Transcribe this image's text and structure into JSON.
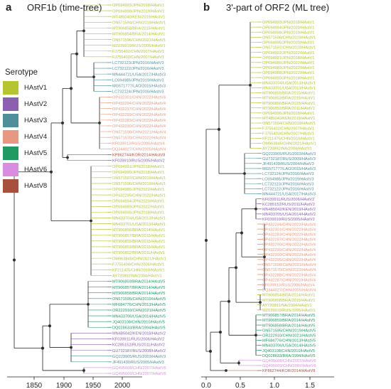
{
  "panels": [
    {
      "letter": "a",
      "title": "ORF1b (time-tree)",
      "axis_ticks": [
        "1850",
        "1900",
        "1950",
        "2000"
      ]
    },
    {
      "letter": "b",
      "title": "3'-part of ORF2 (ML tree)",
      "axis_ticks": [
        "0.0",
        "0.5",
        "1.0",
        "1.5"
      ]
    }
  ],
  "legend": {
    "title": "Serotype",
    "items": [
      {
        "label": "HAstV1",
        "color": "#b5c42f"
      },
      {
        "label": "HAstV2",
        "color": "#8c5fb0"
      },
      {
        "label": "HAstV3",
        "color": "#4f8f9a"
      },
      {
        "label": "HAstV4",
        "color": "#e89880"
      },
      {
        "label": "HAstV5",
        "color": "#1f9a63"
      },
      {
        "label": "HAstV6",
        "color": "#d98de0"
      },
      {
        "label": "HAstV8",
        "color": "#a8503e"
      }
    ]
  },
  "branch_color": "#222222",
  "tree_a_labels": [
    {
      "text": "OP694993/JPN/2018/HAstV1",
      "s": 0
    },
    {
      "text": "OP694998/JPN/2019/HAstV1",
      "s": 0
    },
    {
      "text": "MT485040/KEN/2019/HAstV1",
      "s": 0
    },
    {
      "text": "ON571594/CHN/2019/HAstV1",
      "s": 0
    },
    {
      "text": "MT906858/BRA/2015/HAstV1",
      "s": 0
    },
    {
      "text": "MT906854/BRA/2014/HAstV1",
      "s": 0
    },
    {
      "text": "ON571596/CHN/2021/HAstV1",
      "s": 0
    },
    {
      "text": "MZ039919/RUS/2005/HAstV1",
      "s": 0
    },
    {
      "text": "FJ755402/CHN/2007/HAstV1",
      "s": 0
    },
    {
      "text": "FJ755403/CHN/2007/HAstV1",
      "s": 0
    },
    {
      "text": "LC732123/JPN/2016/HAstV3",
      "s": 2
    },
    {
      "text": "LC732122/JPN/2016/HAstV3",
      "s": 2
    },
    {
      "text": "MN444721/USA/2017/HAstV3",
      "s": 2
    },
    {
      "text": "LC694985/JPN/2019/HAstV3",
      "s": 2
    },
    {
      "text": "MG571777/LAO/2015/HAstV3",
      "s": 2
    },
    {
      "text": "LC732124/JPN/2016/HAstV3",
      "s": 2
    },
    {
      "text": "OP432301/CHN/2022/HAstV4",
      "s": 3
    },
    {
      "text": "OP432294/CHN/2022/HAstV4",
      "s": 3
    },
    {
      "text": "OP432297/CHN/2022/HAstV4",
      "s": 3
    },
    {
      "text": "OP432299/CHN/2022/HAstV4",
      "s": 3
    },
    {
      "text": "OP432283/CHN/2022/HAstV4",
      "s": 3
    },
    {
      "text": "OP432290/CHN/2022/HAstV4",
      "s": 3
    },
    {
      "text": "ON571598/CHN/2021/HAstV4",
      "s": 3
    },
    {
      "text": "ON571570/CHN/2022/HAstV4",
      "s": 3
    },
    {
      "text": "KF039913/RUS/2006/HAstV4",
      "s": 3
    },
    {
      "text": "DQ344027/CHN/2005/HAstV4",
      "s": 3
    },
    {
      "text": "KP862744/KOR/2014/HAstV8",
      "s": 6
    },
    {
      "text": "KF039910/RUS/2005/HAstV2",
      "s": 1
    },
    {
      "text": "OP694991/JPN/2018/HAstV1",
      "s": 0
    },
    {
      "text": "OP694990/JPN/2018/HAstV1",
      "s": 0
    },
    {
      "text": "ON571597/CHN/2019/HAstV1",
      "s": 0
    },
    {
      "text": "ON571596/CHN/2019/HAstV1",
      "s": 0
    },
    {
      "text": "OP694986/JPN/2022/HAstV1",
      "s": 0
    },
    {
      "text": "OP432295/CHN/2022/HAstV1",
      "s": 0
    },
    {
      "text": "OP694994/JPN/2020/HAstV1",
      "s": 0
    },
    {
      "text": "OP694989/JPN/2022/HAstV1",
      "s": 0
    },
    {
      "text": "OP694995/JPN/2018/HAstV1",
      "s": 0
    },
    {
      "text": "MN433704/USA/2013/HAstV1",
      "s": 0
    },
    {
      "text": "MN433701/USA/2013/HAstV1",
      "s": 0
    },
    {
      "text": "MT906856/BRA/2014/HAstV1",
      "s": 0
    },
    {
      "text": "MT906857/BRA/2015/HAstV1",
      "s": 0
    },
    {
      "text": "MT906855/BRA/2015/HAstV1",
      "s": 0
    },
    {
      "text": "MT906853/BRA/2015/HAstV1",
      "s": 0
    },
    {
      "text": "MT906852/BRA/2011/HAstV1",
      "s": 0
    },
    {
      "text": "OM963845/CHN/2021/HAstV1",
      "s": 0
    },
    {
      "text": "FJ755404/CHN/2006/HAstV1",
      "s": 0
    },
    {
      "text": "KF211475/CHN/2010/HAstV1",
      "s": 0
    },
    {
      "text": "AY720892/NA/2004/HAstV1",
      "s": 0
    },
    {
      "text": "MT906859/BRA/2014/HAstV5",
      "s": 4
    },
    {
      "text": "MT906857/BRA/2014/HAstV5",
      "s": 4
    },
    {
      "text": "MT906858/BRA/2014/HAstV5",
      "s": 4
    },
    {
      "text": "ON571595/CHN/2019/HAstV5",
      "s": 4
    },
    {
      "text": "MF684776/CHN/2013/HAstV5",
      "s": 4
    },
    {
      "text": "OR222910/CHN/2021/HAstV5",
      "s": 4
    },
    {
      "text": "MN433706/USA/2014/HAstV5",
      "s": 4
    },
    {
      "text": "JQ403108/CHN/2010/HAstV5",
      "s": 4
    },
    {
      "text": "DQ028633/BRA/1994/HAstV5",
      "s": 4
    },
    {
      "text": "MN485042/KEN/2018/HAstV2",
      "s": 1
    },
    {
      "text": "KF039911/RUS/2006/HAstV2",
      "s": 1
    },
    {
      "text": "KC285152/RUS/2011/HAstV2",
      "s": 1
    },
    {
      "text": "GU732187/RUS/2008/HAstV2",
      "s": 1
    },
    {
      "text": "GQ223905/RUS/2003/HAstV3",
      "s": 2
    },
    {
      "text": "JF491430/RUS/2005/HAstV3",
      "s": 2
    },
    {
      "text": "GQ495608/CHN/2007/HAstV6",
      "s": 5
    },
    {
      "text": "GQ495609/CHN/2007/HAstV6",
      "s": 5
    }
  ],
  "tree_b_labels": [
    {
      "text": "OP694993/JPN/2018/HAstV1",
      "s": 0
    },
    {
      "text": "OP694994/JPN/2020/HAstV1",
      "s": 0
    },
    {
      "text": "OP694998/JPN/2019/HAstV1",
      "s": 0
    },
    {
      "text": "ON571596/CHN/2019/HAstV1",
      "s": 0
    },
    {
      "text": "OP694995/JPN/2020/HAstV1",
      "s": 0
    },
    {
      "text": "ON571597/CHN/2019/HAstV1",
      "s": 0
    },
    {
      "text": "OP694992/JPN/2022/HAstV1",
      "s": 0
    },
    {
      "text": "OP694991/JPN/2018/HAstV1",
      "s": 0
    },
    {
      "text": "OP694986/JPN/2022/HAstV1",
      "s": 0
    },
    {
      "text": "OP694989/JPN/2022/HAstV1",
      "s": 0
    },
    {
      "text": "OP694988/JPN/2022/HAstV1",
      "s": 0
    },
    {
      "text": "OP694990/JPN/2018/HAstV1",
      "s": 0
    },
    {
      "text": "MN433704/USA/2013/HAstV1",
      "s": 0
    },
    {
      "text": "MN433701/USA/2013/HAstV1",
      "s": 0
    },
    {
      "text": "MT906855/BRA/2015/HAstV1",
      "s": 0
    },
    {
      "text": "MT906853/BRA/2015/HAstV1",
      "s": 0
    },
    {
      "text": "MT906856/BRA/2015/HAstV1",
      "s": 0
    },
    {
      "text": "MT906852/BRA/2011/HAstV1",
      "s": 0
    },
    {
      "text": "OP694996/JPN/2018/HAstV1",
      "s": 0
    },
    {
      "text": "MT485040/KEN/2019/HAstV1",
      "s": 0
    },
    {
      "text": "ON571594/CHN/2019/HAstV1",
      "s": 0
    },
    {
      "text": "FJ755402/CHN/2007/HAstV1",
      "s": 0
    },
    {
      "text": "FJ755403/CHN/2007/HAstV1",
      "s": 0
    },
    {
      "text": "KF211475/CHN/2010/HAstV1",
      "s": 0
    },
    {
      "text": "OM963845/CHN/2021/HAstV1",
      "s": 0
    },
    {
      "text": "AY720892/NA/2004/HAstV1",
      "s": 0
    },
    {
      "text": "GQ223905/RUS/2003/HAstV3",
      "s": 2
    },
    {
      "text": "GU732187/RUS/2009/HAstV3",
      "s": 2
    },
    {
      "text": "JF491430/RUS/2004/HAstV3",
      "s": 2
    },
    {
      "text": "MG571777/LAO/2015/HAstV3",
      "s": 2
    },
    {
      "text": "LC732124/JPN/2016/HAstV3",
      "s": 2
    },
    {
      "text": "LC694985/JPN/2019/HAstV3",
      "s": 2
    },
    {
      "text": "LC732123/JPN/2016/HAstV3",
      "s": 2
    },
    {
      "text": "LC732122/JPN/2016/HAstV3",
      "s": 2
    },
    {
      "text": "MN444721/USA/2017/HAstV3",
      "s": 2
    },
    {
      "text": "KF039911/RUS/2006/HAstV2",
      "s": 1
    },
    {
      "text": "KC285152/RUS/2011/HAstV2",
      "s": 1
    },
    {
      "text": "MN485042/KEN/2019/HAstV2",
      "s": 1
    },
    {
      "text": "MN433705/USA/2014/HAstV2",
      "s": 1
    },
    {
      "text": "KF039910/RUS/2005/HAstV2",
      "s": 1
    },
    {
      "text": "OP432294/CHN/2022/HAstV4",
      "s": 3
    },
    {
      "text": "OP432301/CHN/2022/HAstV4",
      "s": 3
    },
    {
      "text": "OP432283/CHN/2022/HAstV4",
      "s": 3
    },
    {
      "text": "OP432297/CHN/2022/HAstV4",
      "s": 3
    },
    {
      "text": "OP432290/CHN/2022/HAstV4",
      "s": 3
    },
    {
      "text": "OP432299/CHN/2022/HAstV4",
      "s": 3
    },
    {
      "text": "OP432300/CHN/2022/HAstV4",
      "s": 3
    },
    {
      "text": "OP432295/CHN/2022/HAstV4",
      "s": 3
    },
    {
      "text": "ON571598/CHN/2021/HAstV4",
      "s": 3
    },
    {
      "text": "ON571570/CHN/2022/HAstV4",
      "s": 3
    },
    {
      "text": "OP432288/CHN/2022/HAstV4",
      "s": 3
    },
    {
      "text": "OP432287/CHN/2022/HAstV4",
      "s": 3
    },
    {
      "text": "KF039913/RUS/2006/HAstV4",
      "s": 3
    },
    {
      "text": "DQ344027/CHN/2005/HAstV4",
      "s": 3
    },
    {
      "text": "MT906854/BRA/2014/HAstV1",
      "s": 0
    },
    {
      "text": "MT906858/BRA/2015/HAstV1",
      "s": 0
    },
    {
      "text": "AY720891/NA/2004/HAstV1",
      "s": 0
    },
    {
      "text": "MZ039919/RUS/1995/HAstV1",
      "s": 0
    },
    {
      "text": "MT906857/BRA/2014/HAstV5",
      "s": 4
    },
    {
      "text": "MT906859/BRA/2014/HAstV5",
      "s": 4
    },
    {
      "text": "MT906858/BRA/2014/HAstV5",
      "s": 4
    },
    {
      "text": "ON571595/CHN/2019/HAstV5",
      "s": 4
    },
    {
      "text": "OR222910/CHN/2021/HAstV5",
      "s": 4
    },
    {
      "text": "MF684776/CHN/2013/HAstV5",
      "s": 4
    },
    {
      "text": "MN433706/USA/2014/HAstV5",
      "s": 4
    },
    {
      "text": "JQ403108/CHN/2010/HAstV5",
      "s": 4
    },
    {
      "text": "DQ028633/BRA/1994/HAstV5",
      "s": 4
    },
    {
      "text": "GQ495608/CHN/2007/HAstV6",
      "s": 5
    },
    {
      "text": "GQ495609/CHN/2007/HAstV6",
      "s": 5
    },
    {
      "text": "KP862744/KOR/2014/HAstV8",
      "s": 6
    }
  ]
}
